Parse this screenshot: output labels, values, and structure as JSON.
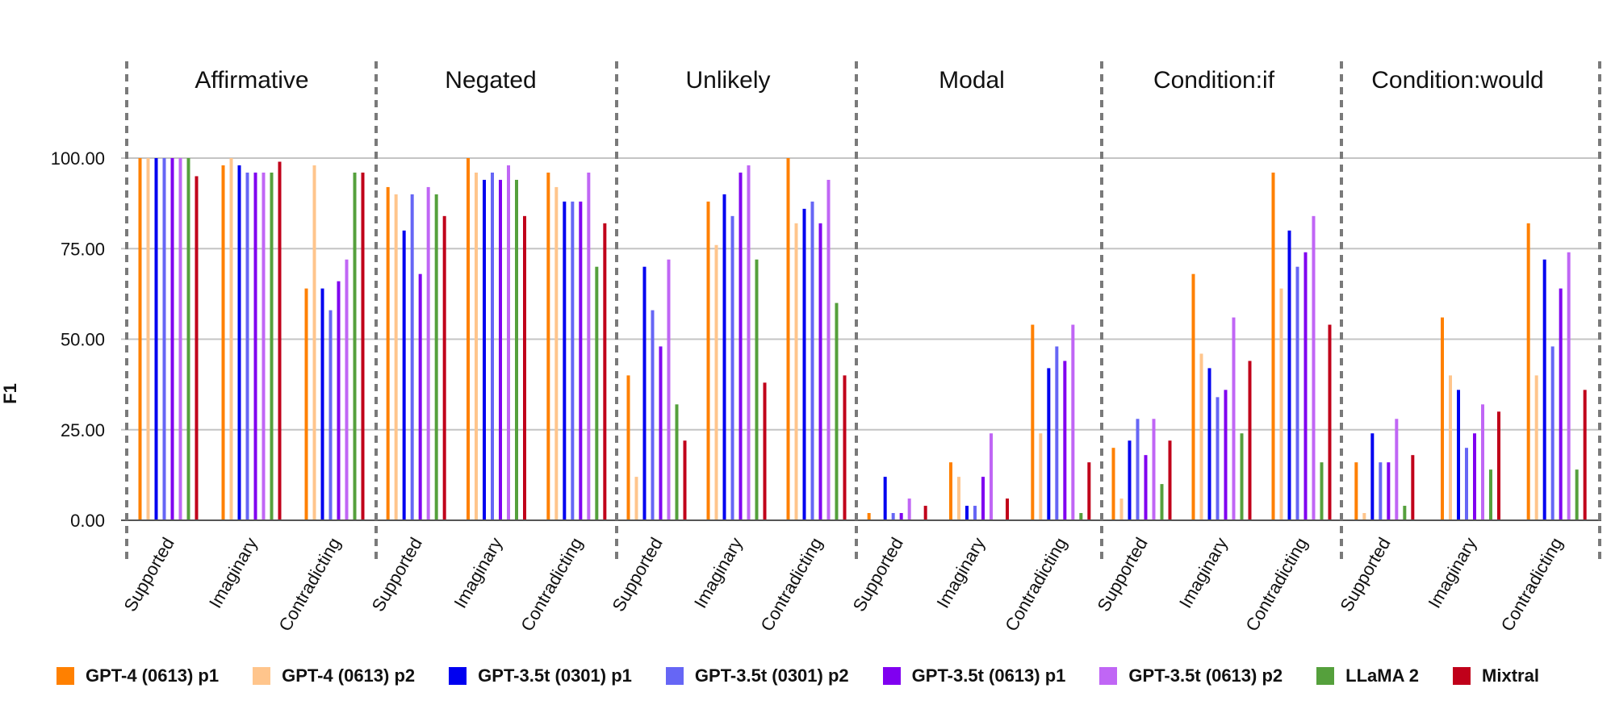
{
  "chart_data": {
    "type": "bar",
    "ylabel": "F1",
    "ylim": [
      0,
      100
    ],
    "yticks": [
      "0.00",
      "25.00",
      "50.00",
      "75.00",
      "100.00"
    ],
    "grid": true,
    "legend_position": "bottom",
    "groups": [
      "Affirmative",
      "Negated",
      "Unlikely",
      "Modal",
      "Condition:if",
      "Condition:would"
    ],
    "categories": [
      "Supported",
      "Imaginary",
      "Contradicting"
    ],
    "series": [
      {
        "name": "GPT-4 (0613) p1",
        "color": "#FF8000",
        "values": [
          [
            100,
            98,
            64
          ],
          [
            92,
            100,
            96
          ],
          [
            40,
            88,
            100
          ],
          [
            2,
            16,
            54
          ],
          [
            20,
            68,
            96
          ],
          [
            16,
            56,
            82
          ]
        ]
      },
      {
        "name": "GPT-4 (0613) p2",
        "color": "#FFC58C",
        "values": [
          [
            100,
            100,
            98
          ],
          [
            90,
            96,
            92
          ],
          [
            12,
            76,
            82
          ],
          [
            0,
            12,
            24
          ],
          [
            6,
            46,
            64
          ],
          [
            2,
            40,
            40
          ]
        ]
      },
      {
        "name": "GPT-3.5t (0301) p1",
        "color": "#0000F0",
        "values": [
          [
            100,
            98,
            64
          ],
          [
            80,
            94,
            88
          ],
          [
            70,
            90,
            86
          ],
          [
            12,
            4,
            42
          ],
          [
            22,
            42,
            80
          ],
          [
            24,
            36,
            72
          ]
        ]
      },
      {
        "name": "GPT-3.5t (0301) p2",
        "color": "#6666F5",
        "values": [
          [
            100,
            96,
            58
          ],
          [
            90,
            96,
            88
          ],
          [
            58,
            84,
            88
          ],
          [
            2,
            4,
            48
          ],
          [
            28,
            34,
            70
          ],
          [
            16,
            20,
            48
          ]
        ]
      },
      {
        "name": "GPT-3.5t (0613) p1",
        "color": "#8000F0",
        "values": [
          [
            100,
            96,
            66
          ],
          [
            68,
            94,
            88
          ],
          [
            48,
            96,
            82
          ],
          [
            2,
            12,
            44
          ],
          [
            18,
            36,
            74
          ],
          [
            16,
            24,
            64
          ]
        ]
      },
      {
        "name": "GPT-3.5t (0613) p2",
        "color": "#C066F5",
        "values": [
          [
            100,
            96,
            72
          ],
          [
            92,
            98,
            96
          ],
          [
            72,
            98,
            94
          ],
          [
            6,
            24,
            54
          ],
          [
            28,
            56,
            84
          ],
          [
            28,
            32,
            74
          ]
        ]
      },
      {
        "name": "LLaMA 2",
        "color": "#55A03C",
        "values": [
          [
            100,
            96,
            96
          ],
          [
            90,
            94,
            70
          ],
          [
            32,
            72,
            60
          ],
          [
            0,
            0,
            2
          ],
          [
            10,
            24,
            16
          ],
          [
            4,
            14,
            14
          ]
        ]
      },
      {
        "name": "Mixtral",
        "color": "#C0001A",
        "values": [
          [
            95,
            99,
            96
          ],
          [
            84,
            84,
            82
          ],
          [
            22,
            38,
            40
          ],
          [
            4,
            6,
            16
          ],
          [
            22,
            44,
            54
          ],
          [
            18,
            30,
            36
          ]
        ]
      }
    ]
  }
}
